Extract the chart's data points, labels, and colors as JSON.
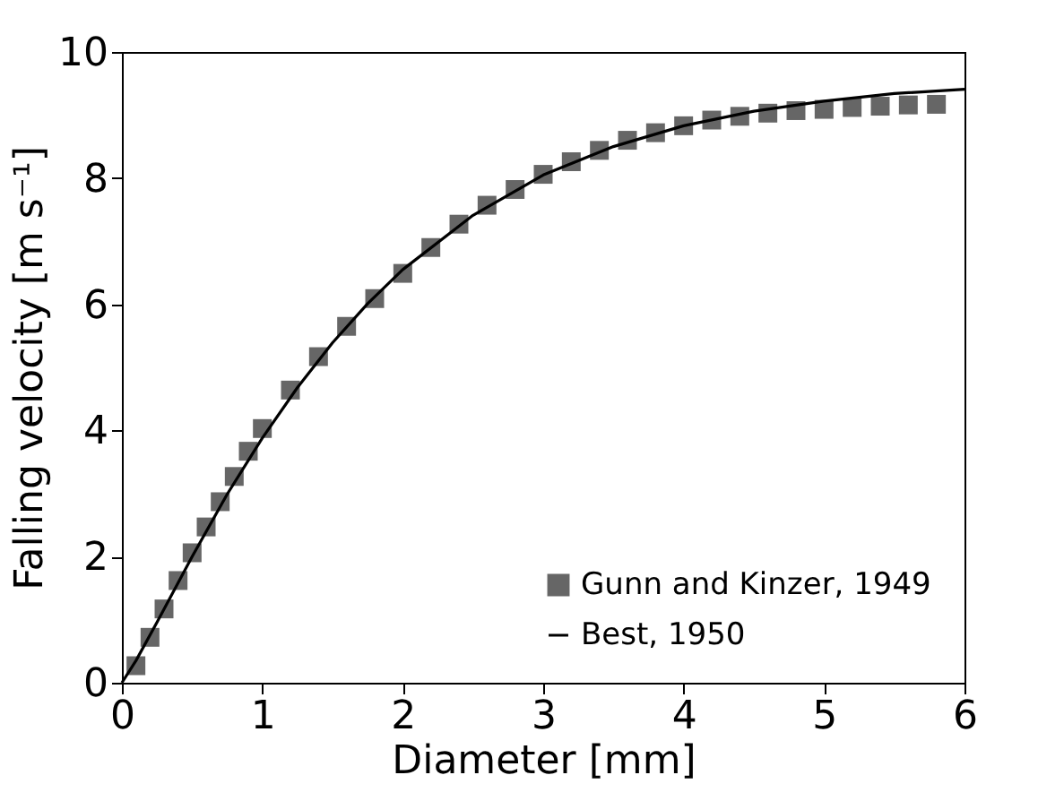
{
  "chart_data": {
    "type": "scatter",
    "xlabel": "Diameter [mm]",
    "ylabel": "Falling velocity [m s⁻¹]",
    "xlim": [
      0,
      6
    ],
    "ylim": [
      0,
      10
    ],
    "xticks": [
      0,
      1,
      2,
      3,
      4,
      5,
      6
    ],
    "yticks": [
      0,
      2,
      4,
      6,
      8,
      10
    ],
    "grid": false,
    "legend": "bottom right",
    "series": [
      {
        "name": "Gunn and Kinzer, 1949",
        "marker": "square",
        "color": "#666666",
        "x": [
          0.1,
          0.2,
          0.3,
          0.4,
          0.5,
          0.6,
          0.7,
          0.8,
          0.9,
          1.0,
          1.2,
          1.4,
          1.6,
          1.8,
          2.0,
          2.2,
          2.4,
          2.6,
          2.8,
          3.0,
          3.2,
          3.4,
          3.6,
          3.8,
          4.0,
          4.2,
          4.4,
          4.6,
          4.8,
          5.0,
          5.2,
          5.4,
          5.6,
          5.8
        ],
        "values": [
          0.27,
          0.72,
          1.17,
          1.62,
          2.06,
          2.47,
          2.87,
          3.27,
          3.67,
          4.03,
          4.64,
          5.17,
          5.65,
          6.09,
          6.49,
          6.9,
          7.27,
          7.57,
          7.82,
          8.06,
          8.26,
          8.44,
          8.6,
          8.72,
          8.83,
          8.92,
          8.98,
          9.03,
          9.07,
          9.09,
          9.12,
          9.14,
          9.16,
          9.17
        ]
      },
      {
        "name": "Best, 1950",
        "type": "line",
        "marker": "none",
        "line_style": "solid",
        "color": "#000000",
        "x": [
          0,
          0.1,
          0.25,
          0.5,
          0.75,
          1.0,
          1.25,
          1.5,
          1.75,
          2.0,
          2.5,
          3.0,
          3.5,
          4.0,
          4.5,
          5.0,
          5.5,
          6.0
        ],
        "values": [
          0,
          0.35,
          0.96,
          2.0,
          2.99,
          3.88,
          4.68,
          5.39,
          6.01,
          6.55,
          7.41,
          8.05,
          8.5,
          8.83,
          9.06,
          9.22,
          9.34,
          9.41
        ]
      }
    ]
  }
}
